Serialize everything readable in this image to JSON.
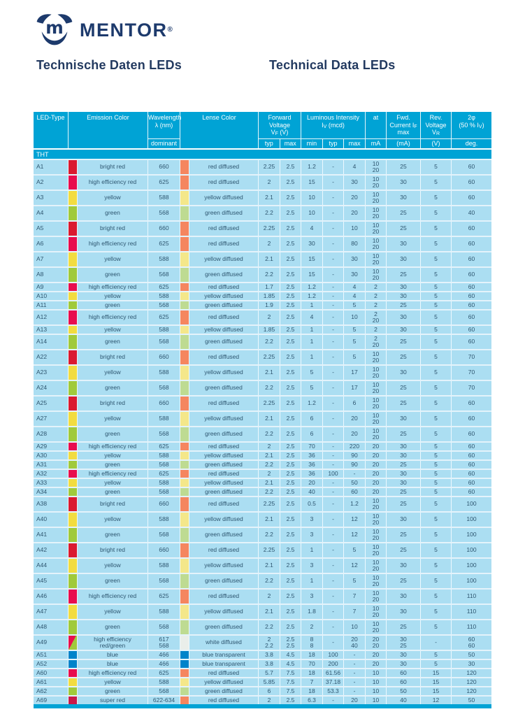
{
  "brand": {
    "wordmark": "MENTOR",
    "registered": "®"
  },
  "titles": {
    "german": "Technische Daten LEDs",
    "english": "Technical Data LEDs"
  },
  "palette": {
    "table_cyan": "#00a3d5",
    "row_bg": "#abdef2",
    "row_text": "#2e5670",
    "navy": "#1d3a6c",
    "bright_red": "#da1a30",
    "he_red": "#e80d4e",
    "yellow": "#f2dc40",
    "green": "#a0ca3b",
    "blue": "#0083ca",
    "super_red": "#c8194a",
    "lens_red": "#f5865f",
    "lens_yellow": "#f4e78a",
    "lens_green": "#bedb92",
    "lens_white": "#eaeeea",
    "lens_blue": "#0083ca"
  },
  "table": {
    "section_label": "THT",
    "header": {
      "led_type": "LED-Type",
      "emission": "Emission Color",
      "wavelength": "Wavelength\nλ (nm)",
      "wavelength_sub": "dominant",
      "lense": "Lense Color",
      "forward": "Forward\nVoltage\nV_F (V)",
      "forward_sub": [
        "typ",
        "max"
      ],
      "luminous": "Luminous Intensity\nI_V (mcd)",
      "luminous_sub": [
        "min",
        "typ",
        "max"
      ],
      "at": "at",
      "at_sub": "mA",
      "fwd_current": "Fwd.\nCurrent I_F\nmax",
      "fwd_current_sub": "(mA)",
      "rev_voltage": "Rev.\nVoltage\nV_R",
      "rev_voltage_sub": "(V)",
      "angle": "2φ\n(50 % I_V)",
      "angle_sub": "deg."
    },
    "rows": [
      {
        "t": "A1",
        "ec": "bright_red",
        "em": "bright red",
        "wl": "660",
        "lc": "lens_red",
        "le": "red diffused",
        "vt": "2.25",
        "vm": "2.5",
        "i1": "1.2",
        "i2": "-",
        "i3": "4",
        "at": "10\n20",
        "fc": "25",
        "rv": "5",
        "dg": "60",
        "h": "tall"
      },
      {
        "t": "A2",
        "ec": "he_red",
        "em": "high efficiency red",
        "wl": "625",
        "lc": "lens_red",
        "le": "red diffused",
        "vt": "2",
        "vm": "2.5",
        "i1": "15",
        "i2": "-",
        "i3": "30",
        "at": "10\n20",
        "fc": "30",
        "rv": "5",
        "dg": "60",
        "h": "tall"
      },
      {
        "t": "A3",
        "ec": "yellow",
        "em": "yellow",
        "wl": "588",
        "lc": "lens_yellow",
        "le": "yellow diffused",
        "vt": "2.1",
        "vm": "2.5",
        "i1": "10",
        "i2": "-",
        "i3": "20",
        "at": "10\n20",
        "fc": "30",
        "rv": "5",
        "dg": "60",
        "h": "tall"
      },
      {
        "t": "A4",
        "ec": "green",
        "em": "green",
        "wl": "568",
        "lc": "lens_green",
        "le": "green diffused",
        "vt": "2.2",
        "vm": "2.5",
        "i1": "10",
        "i2": "-",
        "i3": "20",
        "at": "10\n20",
        "fc": "25",
        "rv": "5",
        "dg": "40",
        "h": "tall"
      },
      {
        "t": "A5",
        "ec": "bright_red",
        "em": "bright red",
        "wl": "660",
        "lc": "lens_red",
        "le": "red diffused",
        "vt": "2.25",
        "vm": "2.5",
        "i1": "4",
        "i2": "-",
        "i3": "10",
        "at": "10\n20",
        "fc": "25",
        "rv": "5",
        "dg": "60",
        "h": "tall"
      },
      {
        "t": "A6",
        "ec": "he_red",
        "em": "high efficiency red",
        "wl": "625",
        "lc": "lens_red",
        "le": "red diffused",
        "vt": "2",
        "vm": "2.5",
        "i1": "30",
        "i2": "-",
        "i3": "80",
        "at": "10\n20",
        "fc": "30",
        "rv": "5",
        "dg": "60",
        "h": "tall"
      },
      {
        "t": "A7",
        "ec": "yellow",
        "em": "yellow",
        "wl": "588",
        "lc": "lens_yellow",
        "le": "yellow diffused",
        "vt": "2.1",
        "vm": "2.5",
        "i1": "15",
        "i2": "-",
        "i3": "30",
        "at": "10\n20",
        "fc": "30",
        "rv": "5",
        "dg": "60",
        "h": "tall"
      },
      {
        "t": "A8",
        "ec": "green",
        "em": "green",
        "wl": "568",
        "lc": "lens_green",
        "le": "green diffused",
        "vt": "2.2",
        "vm": "2.5",
        "i1": "15",
        "i2": "-",
        "i3": "30",
        "at": "10\n20",
        "fc": "25",
        "rv": "5",
        "dg": "60",
        "h": "tall"
      },
      {
        "t": "A9",
        "ec": "he_red",
        "em": "high efficiency red",
        "wl": "625",
        "lc": "lens_red",
        "le": "red diffused",
        "vt": "1.7",
        "vm": "2.5",
        "i1": "1.2",
        "i2": "-",
        "i3": "4",
        "at": "2",
        "fc": "30",
        "rv": "5",
        "dg": "60",
        "h": "thin"
      },
      {
        "t": "A10",
        "ec": "yellow",
        "em": "yellow",
        "wl": "588",
        "lc": "lens_yellow",
        "le": "yellow diffused",
        "vt": "1.85",
        "vm": "2.5",
        "i1": "1.2",
        "i2": "-",
        "i3": "4",
        "at": "2",
        "fc": "30",
        "rv": "5",
        "dg": "60",
        "h": "thin"
      },
      {
        "t": "A11",
        "ec": "green",
        "em": "green",
        "wl": "568",
        "lc": "lens_green",
        "le": "green diffused",
        "vt": "1.9",
        "vm": "2.5",
        "i1": "1",
        "i2": "-",
        "i3": "5",
        "at": "2",
        "fc": "25",
        "rv": "5",
        "dg": "60",
        "h": "thin"
      },
      {
        "t": "A12",
        "ec": "he_red",
        "em": "high efficiency red",
        "wl": "625",
        "lc": "lens_red",
        "le": "red diffused",
        "vt": "2",
        "vm": "2.5",
        "i1": "4",
        "i2": "-",
        "i3": "10",
        "at": "2\n20",
        "fc": "30",
        "rv": "5",
        "dg": "60",
        "h": "tall"
      },
      {
        "t": "A13",
        "ec": "yellow",
        "em": "yellow",
        "wl": "588",
        "lc": "lens_yellow",
        "le": "yellow diffused",
        "vt": "1.85",
        "vm": "2.5",
        "i1": "1",
        "i2": "-",
        "i3": "5",
        "at": "2",
        "fc": "30",
        "rv": "5",
        "dg": "60",
        "h": "thin"
      },
      {
        "t": "A14",
        "ec": "green",
        "em": "green",
        "wl": "568",
        "lc": "lens_green",
        "le": "green diffused",
        "vt": "2.2",
        "vm": "2.5",
        "i1": "1",
        "i2": "-",
        "i3": "5",
        "at": "2\n20",
        "fc": "25",
        "rv": "5",
        "dg": "60",
        "h": "tall"
      },
      {
        "t": "A22",
        "ec": "bright_red",
        "em": "bright red",
        "wl": "660",
        "lc": "lens_red",
        "le": "red diffused",
        "vt": "2.25",
        "vm": "2.5",
        "i1": "1",
        "i2": "-",
        "i3": "5",
        "at": "10\n20",
        "fc": "25",
        "rv": "5",
        "dg": "70",
        "h": "tall"
      },
      {
        "t": "A23",
        "ec": "yellow",
        "em": "yellow",
        "wl": "588",
        "lc": "lens_yellow",
        "le": "yellow diffused",
        "vt": "2.1",
        "vm": "2.5",
        "i1": "5",
        "i2": "-",
        "i3": "17",
        "at": "10\n20",
        "fc": "30",
        "rv": "5",
        "dg": "70",
        "h": "tall"
      },
      {
        "t": "A24",
        "ec": "green",
        "em": "green",
        "wl": "568",
        "lc": "lens_green",
        "le": "green diffused",
        "vt": "2.2",
        "vm": "2.5",
        "i1": "5",
        "i2": "-",
        "i3": "17",
        "at": "10\n20",
        "fc": "25",
        "rv": "5",
        "dg": "70",
        "h": "tall"
      },
      {
        "t": "A25",
        "ec": "bright_red",
        "em": "bright red",
        "wl": "660",
        "lc": "lens_red",
        "le": "red diffused",
        "vt": "2.25",
        "vm": "2.5",
        "i1": "1.2",
        "i2": "-",
        "i3": "6",
        "at": "10\n20",
        "fc": "25",
        "rv": "5",
        "dg": "60",
        "h": "tall"
      },
      {
        "t": "A27",
        "ec": "yellow",
        "em": "yellow",
        "wl": "588",
        "lc": "lens_yellow",
        "le": "yellow diffused",
        "vt": "2.1",
        "vm": "2.5",
        "i1": "6",
        "i2": "-",
        "i3": "20",
        "at": "10\n20",
        "fc": "30",
        "rv": "5",
        "dg": "60",
        "h": "tall"
      },
      {
        "t": "A28",
        "ec": "green",
        "em": "green",
        "wl": "568",
        "lc": "lens_green",
        "le": "green diffused",
        "vt": "2.2",
        "vm": "2.5",
        "i1": "6",
        "i2": "-",
        "i3": "20",
        "at": "10\n20",
        "fc": "25",
        "rv": "5",
        "dg": "60",
        "h": "tall"
      },
      {
        "t": "A29",
        "ec": "he_red",
        "em": "high efficiency red",
        "wl": "625",
        "lc": "lens_red",
        "le": "red diffused",
        "vt": "2",
        "vm": "2.5",
        "i1": "70",
        "i2": "-",
        "i3": "220",
        "at": "20",
        "fc": "30",
        "rv": "5",
        "dg": "60",
        "h": "thin"
      },
      {
        "t": "A30",
        "ec": "yellow",
        "em": "yellow",
        "wl": "588",
        "lc": "lens_yellow",
        "le": "yellow diffused",
        "vt": "2.1",
        "vm": "2.5",
        "i1": "36",
        "i2": "-",
        "i3": "90",
        "at": "20",
        "fc": "30",
        "rv": "5",
        "dg": "60",
        "h": "thin"
      },
      {
        "t": "A31",
        "ec": "green",
        "em": "green",
        "wl": "568",
        "lc": "lens_green",
        "le": "green diffused",
        "vt": "2.2",
        "vm": "2.5",
        "i1": "36",
        "i2": "-",
        "i3": "90",
        "at": "20",
        "fc": "25",
        "rv": "5",
        "dg": "60",
        "h": "thin"
      },
      {
        "t": "A32",
        "ec": "he_red",
        "em": "high efficiency red",
        "wl": "625",
        "lc": "lens_red",
        "le": "red diffused",
        "vt": "2",
        "vm": "2.5",
        "i1": "36",
        "i2": "100",
        "i3": "-",
        "at": "20",
        "fc": "30",
        "rv": "5",
        "dg": "60",
        "h": "thin"
      },
      {
        "t": "A33",
        "ec": "yellow",
        "em": "yellow",
        "wl": "588",
        "lc": "lens_yellow",
        "le": "yellow diffused",
        "vt": "2.1",
        "vm": "2.5",
        "i1": "20",
        "i2": "-",
        "i3": "50",
        "at": "20",
        "fc": "30",
        "rv": "5",
        "dg": "60",
        "h": "thin"
      },
      {
        "t": "A34",
        "ec": "green",
        "em": "green",
        "wl": "568",
        "lc": "lens_green",
        "le": "green diffused",
        "vt": "2.2",
        "vm": "2.5",
        "i1": "40",
        "i2": "-",
        "i3": "60",
        "at": "20",
        "fc": "25",
        "rv": "5",
        "dg": "60",
        "h": "thin"
      },
      {
        "t": "A38",
        "ec": "bright_red",
        "em": "bright red",
        "wl": "660",
        "lc": "lens_red",
        "le": "red diffused",
        "vt": "2.25",
        "vm": "2.5",
        "i1": "0.5",
        "i2": "-",
        "i3": "1.2",
        "at": "10\n20",
        "fc": "25",
        "rv": "5",
        "dg": "100",
        "h": "tall"
      },
      {
        "t": "A40",
        "ec": "yellow",
        "em": "yellow",
        "wl": "588",
        "lc": "lens_yellow",
        "le": "yellow diffused",
        "vt": "2.1",
        "vm": "2.5",
        "i1": "3",
        "i2": "-",
        "i3": "12",
        "at": "10\n20",
        "fc": "30",
        "rv": "5",
        "dg": "100",
        "h": "tall"
      },
      {
        "t": "A41",
        "ec": "green",
        "em": "green",
        "wl": "568",
        "lc": "lens_green",
        "le": "green diffused",
        "vt": "2.2",
        "vm": "2.5",
        "i1": "3",
        "i2": "-",
        "i3": "12",
        "at": "10\n20",
        "fc": "25",
        "rv": "5",
        "dg": "100",
        "h": "tall"
      },
      {
        "t": "A42",
        "ec": "bright_red",
        "em": "bright red",
        "wl": "660",
        "lc": "lens_red",
        "le": "red diffused",
        "vt": "2.25",
        "vm": "2.5",
        "i1": "1",
        "i2": "-",
        "i3": "5",
        "at": "10\n20",
        "fc": "25",
        "rv": "5",
        "dg": "100",
        "h": "tall"
      },
      {
        "t": "A44",
        "ec": "yellow",
        "em": "yellow",
        "wl": "588",
        "lc": "lens_yellow",
        "le": "yellow diffused",
        "vt": "2.1",
        "vm": "2.5",
        "i1": "3",
        "i2": "-",
        "i3": "12",
        "at": "10\n20",
        "fc": "30",
        "rv": "5",
        "dg": "100",
        "h": "tall"
      },
      {
        "t": "A45",
        "ec": "green",
        "em": "green",
        "wl": "568",
        "lc": "lens_green",
        "le": "green diffused",
        "vt": "2.2",
        "vm": "2.5",
        "i1": "1",
        "i2": "-",
        "i3": "5",
        "at": "10\n20",
        "fc": "25",
        "rv": "5",
        "dg": "100",
        "h": "tall"
      },
      {
        "t": "A46",
        "ec": "he_red",
        "em": "high efficiency red",
        "wl": "625",
        "lc": "lens_red",
        "le": "red diffused",
        "vt": "2",
        "vm": "2.5",
        "i1": "3",
        "i2": "-",
        "i3": "7",
        "at": "10\n20",
        "fc": "30",
        "rv": "5",
        "dg": "110",
        "h": "tall"
      },
      {
        "t": "A47",
        "ec": "yellow",
        "em": "yellow",
        "wl": "588",
        "lc": "lens_yellow",
        "le": "yellow diffused",
        "vt": "2.1",
        "vm": "2.5",
        "i1": "1.8",
        "i2": "-",
        "i3": "7",
        "at": "10\n20",
        "fc": "30",
        "rv": "5",
        "dg": "110",
        "h": "tall"
      },
      {
        "t": "A48",
        "ec": "green",
        "em": "green",
        "wl": "568",
        "lc": "lens_green",
        "le": "green diffused",
        "vt": "2.2",
        "vm": "2.5",
        "i1": "2",
        "i2": "-",
        "i3": "10",
        "at": "10\n20",
        "fc": "25",
        "rv": "5",
        "dg": "110",
        "h": "tall"
      },
      {
        "t": "A49",
        "ec": "red_green",
        "em": "high efficiency\nred/green",
        "wl": "617\n568",
        "lc": "lens_white",
        "le": "white diffused",
        "vt": "2\n2.2",
        "vm": "2.5\n2.5",
        "i1": "8\n8",
        "i2": "-",
        "i3": "20\n40",
        "at": "20\n20",
        "fc": "30\n25",
        "rv": "-",
        "dg": "60\n60",
        "h": "tall"
      },
      {
        "t": "A51",
        "ec": "blue",
        "em": "blue",
        "wl": "466",
        "lc": "lens_blue",
        "le": "blue transparent",
        "vt": "3.8",
        "vm": "4.5",
        "i1": "18",
        "i2": "100",
        "i3": "-",
        "at": "20",
        "fc": "30",
        "rv": "5",
        "dg": "50",
        "h": "thin"
      },
      {
        "t": "A52",
        "ec": "blue",
        "em": "blue",
        "wl": "466",
        "lc": "lens_blue",
        "le": "blue transparent",
        "vt": "3.8",
        "vm": "4.5",
        "i1": "70",
        "i2": "200",
        "i3": "-",
        "at": "20",
        "fc": "30",
        "rv": "5",
        "dg": "30",
        "h": "thin"
      },
      {
        "t": "A60",
        "ec": "he_red",
        "em": "high efficiency red",
        "wl": "625",
        "lc": "lens_red",
        "le": "red diffused",
        "vt": "5.7",
        "vm": "7.5",
        "i1": "18",
        "i2": "61.56",
        "i3": "-",
        "at": "10",
        "fc": "60",
        "rv": "15",
        "dg": "120",
        "h": "thin"
      },
      {
        "t": "A61",
        "ec": "yellow",
        "em": "yellow",
        "wl": "588",
        "lc": "lens_yellow",
        "le": "yellow diffused",
        "vt": "5.85",
        "vm": "7.5",
        "i1": "7",
        "i2": "37.18",
        "i3": "-",
        "at": "10",
        "fc": "60",
        "rv": "15",
        "dg": "120",
        "h": "thin"
      },
      {
        "t": "A62",
        "ec": "green",
        "em": "green",
        "wl": "568",
        "lc": "lens_green",
        "le": "green diffused",
        "vt": "6",
        "vm": "7.5",
        "i1": "18",
        "i2": "53.3",
        "i3": "-",
        "at": "10",
        "fc": "50",
        "rv": "15",
        "dg": "120",
        "h": "thin"
      },
      {
        "t": "A69",
        "ec": "super_red",
        "em": "super red",
        "wl": "622-634",
        "lc": "lens_red",
        "le": "red diffused",
        "vt": "2",
        "vm": "2.5",
        "i1": "6.3",
        "i2": "-",
        "i3": "20",
        "at": "10",
        "fc": "40",
        "rv": "12",
        "dg": "50",
        "h": "thin"
      }
    ]
  }
}
